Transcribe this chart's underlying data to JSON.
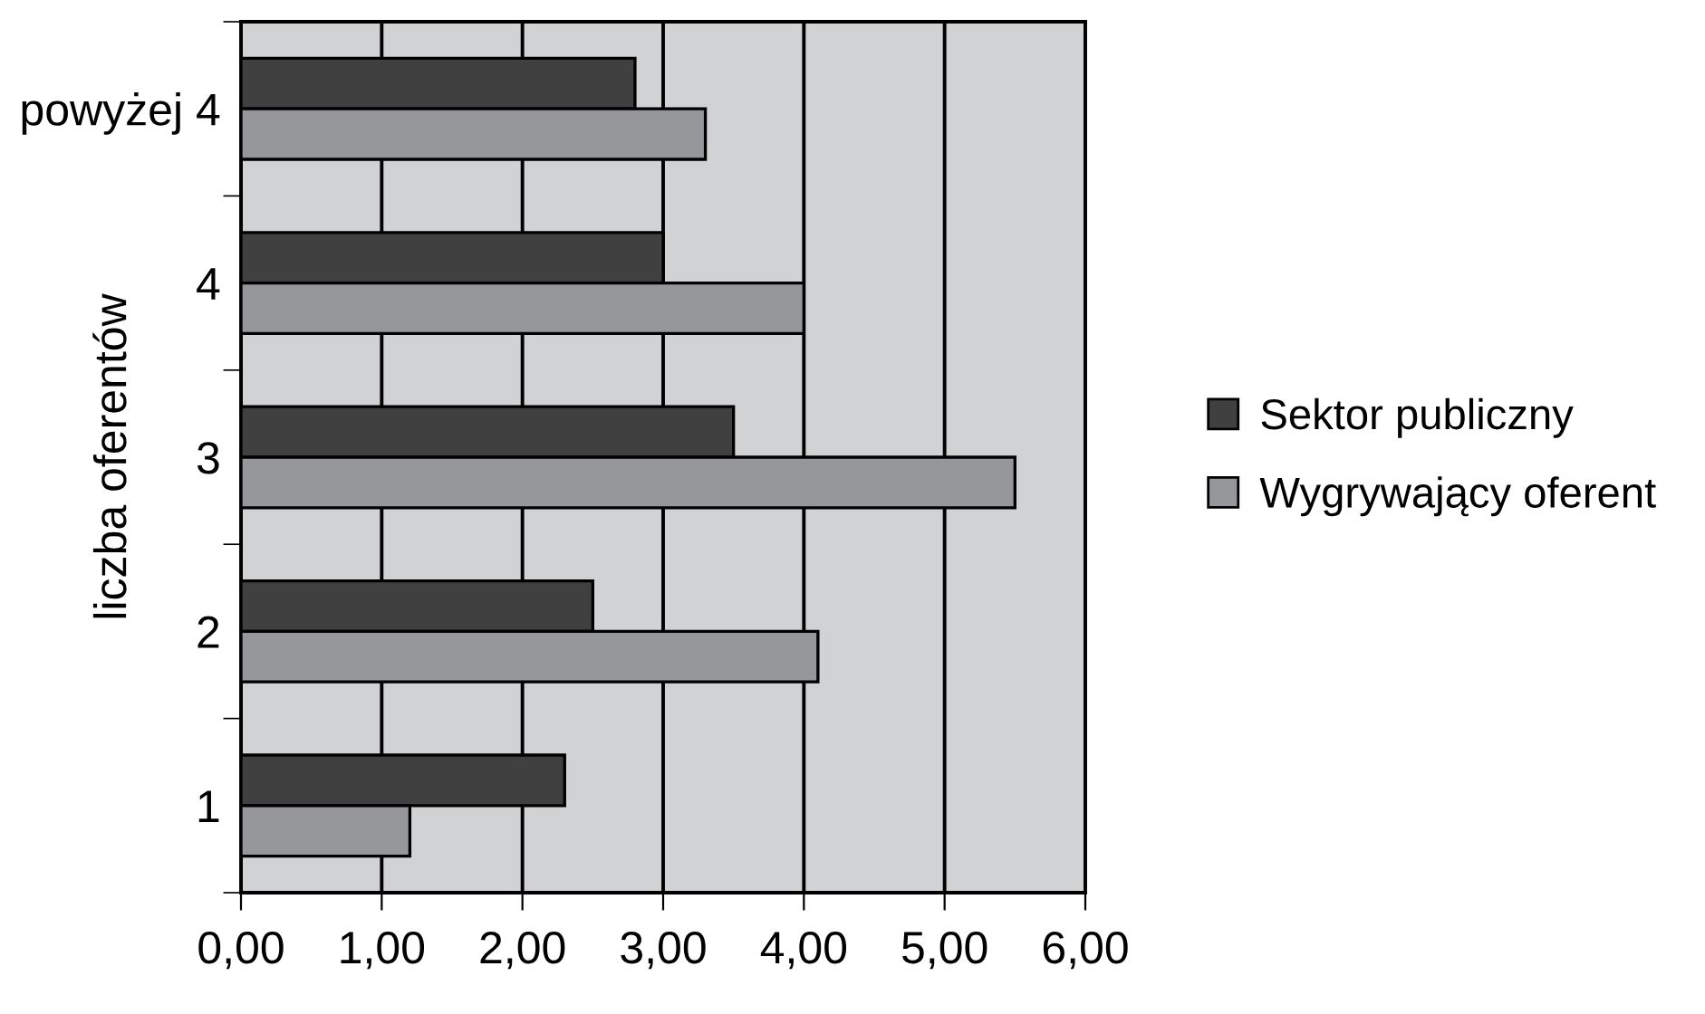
{
  "chart_data": {
    "type": "bar",
    "orientation": "horizontal",
    "ylabel": "liczba oferentów",
    "categories": [
      "powyżej 4",
      "4",
      "3",
      "2",
      "1"
    ],
    "series": [
      {
        "name": "Sektor publiczny",
        "color": "#404040",
        "values": [
          2.8,
          3.0,
          3.5,
          2.5,
          2.3
        ]
      },
      {
        "name": "Wygrywający oferent",
        "color": "#96979b",
        "values": [
          3.3,
          4.0,
          5.5,
          4.1,
          1.2
        ]
      }
    ],
    "xlim": [
      0,
      6
    ],
    "xticks": [
      {
        "value": 0,
        "label": "0,00"
      },
      {
        "value": 1,
        "label": "1,00"
      },
      {
        "value": 2,
        "label": "2,00"
      },
      {
        "value": 3,
        "label": "3,00"
      },
      {
        "value": 4,
        "label": "4,00"
      },
      {
        "value": 5,
        "label": "5,00"
      },
      {
        "value": 6,
        "label": "6,00"
      }
    ],
    "grid": "x",
    "legend": "right"
  }
}
